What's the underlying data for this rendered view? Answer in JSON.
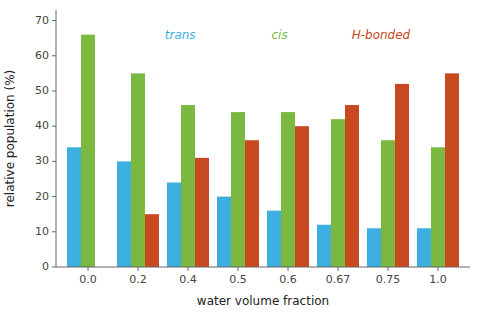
{
  "chart_data": {
    "type": "bar",
    "categories": [
      "0.0",
      "0.2",
      "0.4",
      "0.5",
      "0.6",
      "0.67",
      "0.75",
      "1.0"
    ],
    "series": [
      {
        "name": "trans",
        "color": "#3daee0",
        "values": [
          34,
          30,
          24,
          20,
          16,
          12,
          11,
          11
        ]
      },
      {
        "name": "cis",
        "color": "#7ab840",
        "values": [
          66,
          55,
          46,
          44,
          44,
          42,
          36,
          34
        ]
      },
      {
        "name": "H-bonded",
        "color": "#c84820",
        "values": [
          0,
          15,
          31,
          36,
          40,
          46,
          52,
          55
        ]
      }
    ],
    "x_label": "water volume fraction",
    "y_label": "relative population (%)",
    "ylim": [
      0,
      73
    ],
    "yticks": [
      0,
      10,
      20,
      30,
      40,
      50,
      60,
      70
    ],
    "grid": false
  }
}
